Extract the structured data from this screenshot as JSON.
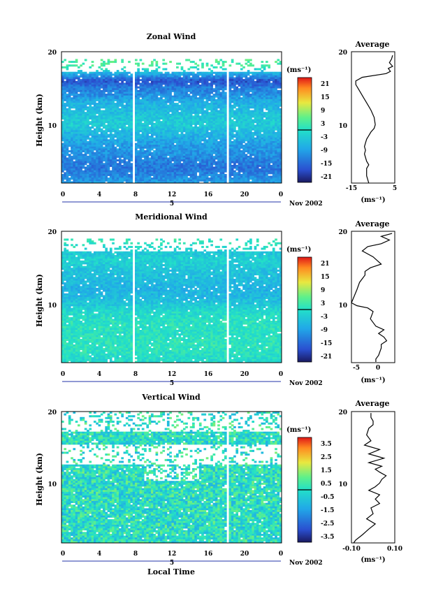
{
  "figure": {
    "panels": [
      {
        "title": "Zonal Wind",
        "ylabel": "Height (km)",
        "ytick_labels": [
          "20",
          "10"
        ],
        "xtick_labels": [
          "0",
          "4",
          "8",
          "12",
          "16",
          "20",
          "0"
        ],
        "date_tick_label": "5",
        "date_label": "Nov 2002",
        "xlabel": "",
        "colorbar": {
          "unit": "(ms⁻¹)",
          "labels": [
            "21",
            "15",
            "9",
            "3",
            "-3",
            "-9",
            "-15",
            "-21"
          ],
          "range": [
            -24,
            24
          ],
          "zero_line": true
        },
        "average": {
          "title": "Average",
          "unit": "(ms⁻¹)",
          "ytick_labels": [
            "20",
            "10"
          ],
          "xtick_labels": [
            "-15",
            "5"
          ],
          "xlim": [
            -15,
            5
          ]
        }
      },
      {
        "title": "Meridional Wind",
        "ylabel": "Height (km)",
        "ytick_labels": [
          "20",
          "10"
        ],
        "xtick_labels": [
          "0",
          "4",
          "8",
          "12",
          "16",
          "20",
          "0"
        ],
        "date_tick_label": "5",
        "date_label": "Nov 2002",
        "xlabel": "",
        "colorbar": {
          "unit": "(ms⁻¹)",
          "labels": [
            "21",
            "15",
            "9",
            "3",
            "-3",
            "-9",
            "-15",
            "-21"
          ],
          "range": [
            -24,
            24
          ],
          "zero_line": true
        },
        "average": {
          "title": "Average",
          "unit": "(ms⁻¹)",
          "ytick_labels": [
            "20",
            "10"
          ],
          "xtick_labels": [
            "-5",
            "0"
          ],
          "xlim": [
            -5,
            3
          ]
        }
      },
      {
        "title": "Vertical Wind",
        "ylabel": "Height (km)",
        "ytick_labels": [
          "20",
          "10"
        ],
        "xtick_labels": [
          "0",
          "4",
          "8",
          "12",
          "16",
          "20",
          "0"
        ],
        "date_tick_label": "5",
        "date_label": "Nov 2002",
        "xlabel": "Local Time",
        "colorbar": {
          "unit": "(ms⁻¹)",
          "labels": [
            "3.5",
            "2.5",
            "1.5",
            "0.5",
            "-0.5",
            "-1.5",
            "-2.5",
            "-3.5"
          ],
          "range": [
            -4,
            4
          ],
          "zero_line": true
        },
        "average": {
          "title": "Average",
          "unit": "(ms⁻¹)",
          "ytick_labels": [
            "20",
            "10"
          ],
          "xtick_labels": [
            "-0.10",
            "0.10"
          ],
          "xlim": [
            -0.1,
            0.1
          ]
        }
      }
    ]
  },
  "chart_data": [
    {
      "type": "heatmap",
      "title": "Zonal Wind",
      "ylabel": "Height (km)",
      "x_range_hours": [
        0,
        24
      ],
      "ylim_km": [
        2,
        20
      ],
      "color_range": [
        -24,
        24
      ],
      "height_km": [
        20,
        19,
        18,
        17,
        16,
        15,
        14,
        13,
        12,
        11,
        10,
        9,
        8,
        7,
        6,
        5,
        4,
        3,
        2
      ],
      "time_mean_ms": [
        null,
        4,
        3,
        -8,
        -18,
        -13,
        -11,
        -7,
        -6,
        -4,
        -3,
        -6,
        -8,
        -10,
        -11,
        -13,
        -14,
        -12,
        -10
      ],
      "data_gaps_hours": [
        7.8,
        8.1,
        18.0,
        18.3
      ]
    },
    {
      "type": "heatmap",
      "title": "Meridional Wind",
      "ylabel": "Height (km)",
      "x_range_hours": [
        0,
        24
      ],
      "ylim_km": [
        2,
        20
      ],
      "color_range": [
        -24,
        24
      ],
      "height_km": [
        20,
        19,
        18,
        17,
        16,
        15,
        14,
        13,
        12,
        11,
        10,
        9,
        8,
        7,
        6,
        5,
        4,
        3,
        2
      ],
      "time_mean_ms": [
        null,
        2,
        0,
        -4,
        -2,
        -4,
        -5,
        -6,
        -7,
        -6,
        -4,
        -1,
        0,
        1,
        0,
        1,
        1,
        0,
        -1
      ],
      "data_gaps_hours": [
        7.8,
        8.1,
        18.0,
        18.3
      ]
    },
    {
      "type": "heatmap",
      "title": "Vertical Wind",
      "ylabel": "Height (km)",
      "x_range_hours": [
        0,
        24
      ],
      "ylim_km": [
        2,
        20
      ],
      "color_range": [
        -4,
        4
      ],
      "height_km": [
        20,
        19,
        18,
        17,
        16,
        15,
        14,
        13,
        12,
        11,
        10,
        9,
        8,
        7,
        6,
        5,
        4,
        3,
        2
      ],
      "time_mean_ms": [
        0.0,
        0.01,
        0.0,
        -0.02,
        -0.03,
        0.02,
        0.05,
        -0.02,
        0.03,
        0.02,
        -0.02,
        0.03,
        0.0,
        -0.04,
        -0.01,
        0.02,
        -0.03,
        -0.05,
        -0.08
      ],
      "data_gaps_hours": [
        18.0,
        18.3
      ]
    },
    {
      "type": "line",
      "title": "Average",
      "xlabel": "(ms⁻¹)",
      "xlim": [
        -15,
        5
      ],
      "ylim": [
        2,
        20
      ],
      "x": [
        4,
        3.5,
        2.5,
        4,
        2,
        3,
        1,
        -10,
        -13,
        -13,
        -12,
        -11,
        -10,
        -9,
        -8,
        -7,
        -6,
        -4.5,
        -4,
        -4.5,
        -6,
        -7,
        -8,
        -8.5,
        -9,
        -8.5,
        -9,
        -8,
        -7,
        -8,
        -8,
        -7
      ],
      "y": [
        19.5,
        19,
        18.5,
        18,
        17.7,
        17.3,
        17,
        16.5,
        16,
        15.5,
        15,
        14.5,
        14,
        13.5,
        13,
        12.5,
        12,
        11,
        10,
        9.5,
        9,
        8.5,
        8,
        7.5,
        7,
        6.5,
        6,
        5,
        4.5,
        4,
        3,
        2
      ]
    },
    {
      "type": "line",
      "title": "Average",
      "xlabel": "(ms⁻¹)",
      "xlim": [
        -5,
        3
      ],
      "ylim": [
        2,
        20
      ],
      "x": [
        2.5,
        0.5,
        2,
        0.5,
        -2,
        -3,
        -1,
        0.5,
        -1.5,
        -2.5,
        -2.5,
        -3.5,
        -4,
        -5,
        -4,
        -2,
        -1,
        -1.5,
        -0.5,
        1,
        0,
        1,
        1.5,
        0.5,
        0.5,
        0,
        -0.5,
        -0.5
      ],
      "y": [
        19.7,
        19.3,
        18.8,
        18.3,
        17.9,
        17.3,
        16.5,
        15.5,
        15,
        14.5,
        14,
        13,
        12,
        10.2,
        9.8,
        9.5,
        9,
        8,
        7,
        6.5,
        6,
        5.5,
        5,
        4.5,
        4,
        3,
        2.5,
        2.1
      ]
    },
    {
      "type": "line",
      "title": "Average",
      "xlabel": "(ms⁻¹)",
      "xlim": [
        -0.1,
        0.1
      ],
      "ylim": [
        2,
        20
      ],
      "x": [
        -0.01,
        -0.01,
        0.0,
        0.0,
        -0.02,
        -0.03,
        -0.01,
        -0.04,
        0.03,
        -0.02,
        0.05,
        -0.02,
        0.04,
        0.01,
        0.03,
        0.06,
        0.04,
        0.03,
        0.01,
        -0.02,
        0.03,
        0.01,
        0.03,
        -0.01,
        0.0,
        -0.03,
        0.01,
        -0.02,
        -0.05,
        -0.08,
        -0.09
      ],
      "y": [
        19.8,
        19.2,
        18.7,
        18.2,
        17.7,
        16.8,
        16,
        15.4,
        14.8,
        14.2,
        13.6,
        13,
        12.5,
        12.1,
        11.7,
        11.2,
        10.7,
        10.2,
        9.7,
        9.2,
        8.6,
        8.0,
        7.4,
        6.8,
        6.0,
        5.3,
        4.6,
        3.9,
        3.1,
        2.4,
        2.0
      ]
    }
  ]
}
